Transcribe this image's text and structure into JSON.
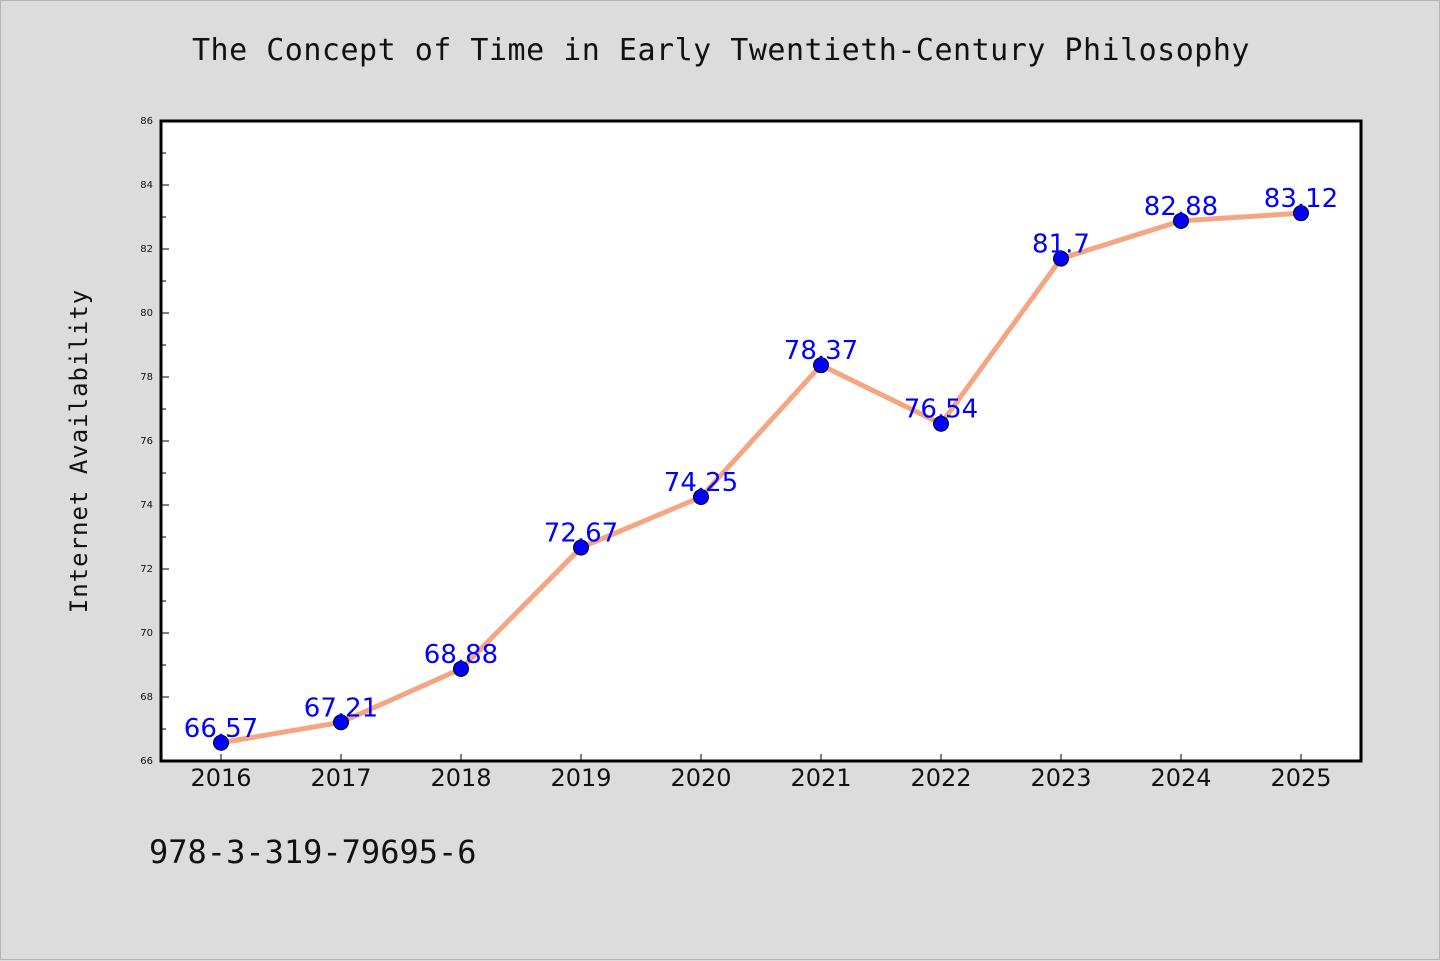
{
  "title": "The Concept of Time in Early Twentieth-Century Philosophy",
  "footer_text": "978-3-319-79695-6",
  "colors": {
    "background": "#dcdcdc",
    "plot_background": "#ffffff",
    "line": "#f4a582",
    "marker": "#0000ff",
    "label": "#0000ff"
  },
  "chart_data": {
    "type": "line",
    "categories": [
      "2016",
      "2017",
      "2018",
      "2019",
      "2020",
      "2021",
      "2022",
      "2023",
      "2024",
      "2025"
    ],
    "series": [
      {
        "values": [
          66.57,
          67.21,
          68.88,
          72.67,
          74.25,
          78.37,
          76.54,
          81.7,
          82.88,
          83.12
        ]
      }
    ],
    "data_labels": [
      "66.57",
      "67.21",
      "68.88",
      "72.67",
      "74.25",
      "78.37",
      "76.54",
      "81.7",
      "82.88",
      "83.12"
    ],
    "title": "The Concept of Time in Early Twentieth-Century Philosophy",
    "xlabel": "",
    "ylabel": "Internet Availability",
    "ylim": [
      66,
      86
    ],
    "yticks": [
      66,
      68,
      70,
      72,
      74,
      76,
      78,
      80,
      82,
      84,
      86
    ],
    "grid": false,
    "legend": "none"
  }
}
